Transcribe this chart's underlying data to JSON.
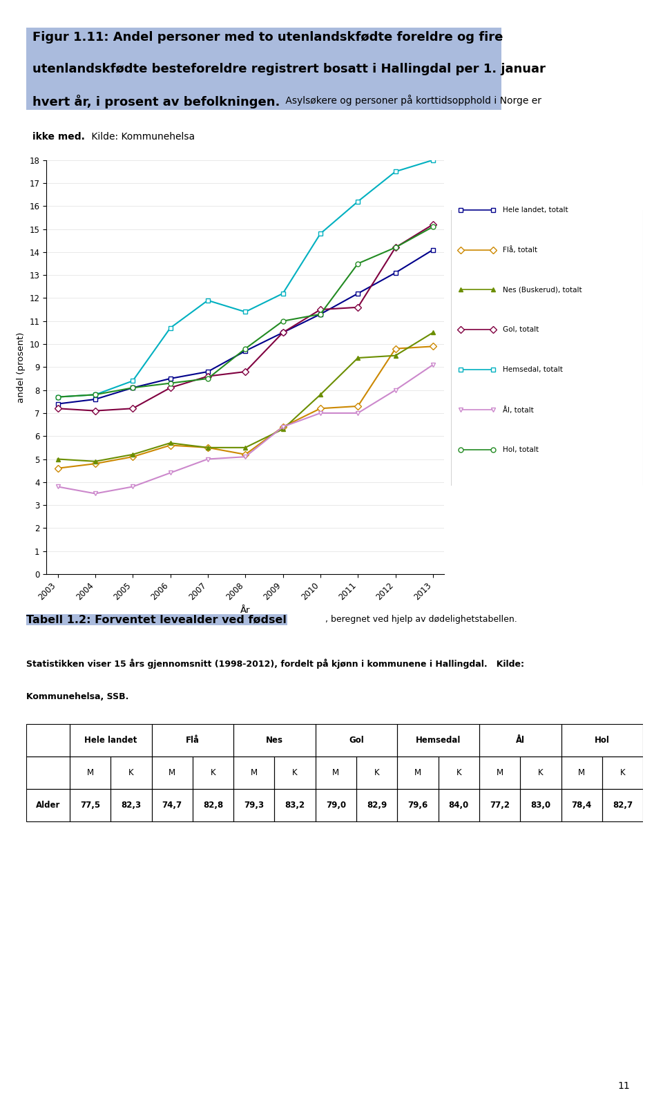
{
  "years": [
    2003,
    2004,
    2005,
    2006,
    2007,
    2008,
    2009,
    2010,
    2011,
    2012,
    2013
  ],
  "series": [
    {
      "name": "Hele landet, totalt",
      "values": [
        7.4,
        7.6,
        8.1,
        8.5,
        8.8,
        9.7,
        10.5,
        11.3,
        12.2,
        13.1,
        14.1
      ],
      "color": "#00008B",
      "marker": "s",
      "marker_fill": "white"
    },
    {
      "name": "Flå, totalt",
      "values": [
        4.6,
        4.8,
        5.1,
        5.6,
        5.5,
        5.2,
        6.4,
        7.2,
        7.3,
        9.8,
        9.9
      ],
      "color": "#CC8800",
      "marker": "D",
      "marker_fill": "white"
    },
    {
      "name": "Nes (Buskerud), totalt",
      "values": [
        5.0,
        4.9,
        5.2,
        5.7,
        5.5,
        5.5,
        6.3,
        7.8,
        9.4,
        9.5,
        10.5
      ],
      "color": "#6B8E00",
      "marker": "^",
      "marker_fill": "#6B8E00"
    },
    {
      "name": "Gol, totalt",
      "values": [
        7.2,
        7.1,
        7.2,
        8.1,
        8.6,
        8.8,
        10.5,
        11.5,
        11.6,
        14.2,
        15.2
      ],
      "color": "#800040",
      "marker": "D",
      "marker_fill": "white"
    },
    {
      "name": "Hemsedal, totalt",
      "values": [
        7.7,
        7.8,
        8.4,
        10.7,
        11.9,
        11.4,
        12.2,
        14.8,
        16.2,
        17.5,
        18.0
      ],
      "color": "#00B0C0",
      "marker": "s",
      "marker_fill": "white"
    },
    {
      "name": "Ål, totalt",
      "values": [
        3.8,
        3.5,
        3.8,
        4.4,
        5.0,
        5.1,
        6.4,
        7.0,
        7.0,
        8.0,
        9.1
      ],
      "color": "#CC88CC",
      "marker": "v",
      "marker_fill": "white"
    },
    {
      "name": "Hol, totalt",
      "values": [
        7.7,
        7.8,
        8.1,
        8.3,
        8.5,
        9.8,
        11.0,
        11.3,
        13.5,
        14.2,
        15.1
      ],
      "color": "#228B22",
      "marker": "o",
      "marker_fill": "white"
    }
  ],
  "ylabel": "andel (prosent)",
  "xlabel": "År",
  "ylim": [
    0,
    18
  ],
  "yticks": [
    0,
    1,
    2,
    3,
    4,
    5,
    6,
    7,
    8,
    9,
    10,
    11,
    12,
    13,
    14,
    15,
    16,
    17,
    18
  ],
  "title_line1": "Figur 1.11: Andel personer med to utenlandskfødte foreldre og fire",
  "title_line2": "utenlandskfødte besteforeldre registrert bosatt i Hallingdal per 1. januar",
  "title_line3_bold": "hvert år, i prosent av befolkningen.",
  "title_line3_normal": " Asylsøkere og personer på korttidsopphold i Norge er",
  "title_line4_bold": "ikke med.",
  "title_line4_normal": " Kilde: Kommunehelsa",
  "highlight_color": "#AABBDD",
  "table_title_bold": "Tabell 1.2: Forventet levealder ved fødsel",
  "table_title_normal": ", beregnet ved hjelp av dødelighetstabellen.",
  "table_subtitle1": "Statistikken viser 15 års gjennomsnitt (1998-2012), fordelt på kjønn i kommunene i Hallingdal.   Kilde:",
  "table_subtitle2": "Kommunehelsa, SSB.",
  "table_headers": [
    "",
    "Hele landet",
    "Flå",
    "Nes",
    "Gol",
    "Hemsedal",
    "Ål",
    "Hol"
  ],
  "table_mk_row": [
    "",
    "M",
    "K",
    "M",
    "K",
    "M",
    "K",
    "M",
    "K",
    "M",
    "K",
    "M",
    "K",
    "M",
    "K"
  ],
  "table_data_row": [
    "Alder",
    "77,5",
    "82,3",
    "74,7",
    "82,8",
    "79,3",
    "83,2",
    "79,0",
    "82,9",
    "79,6",
    "84,0",
    "77,2",
    "83,0",
    "78,4",
    "82,7"
  ],
  "page_number": "11"
}
